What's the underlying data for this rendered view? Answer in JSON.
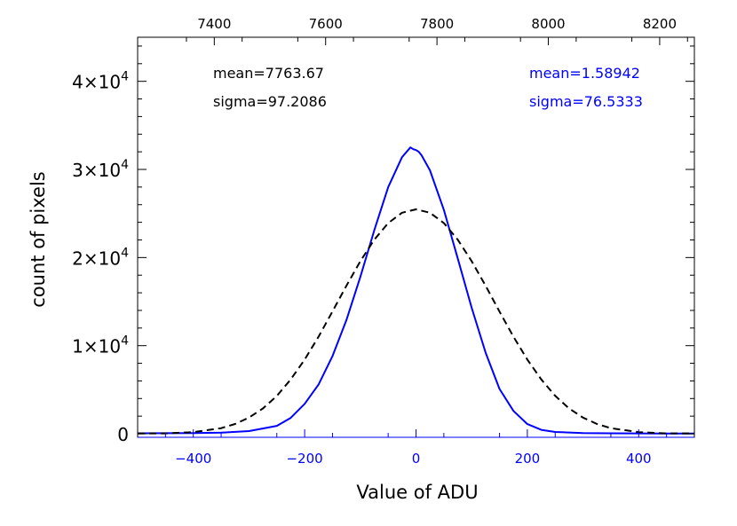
{
  "chart_data": {
    "type": "line",
    "xlabel": "Value of ADU",
    "ylabel": "count of pixels",
    "xlim": [
      -500,
      500
    ],
    "ylim": [
      -400,
      45000
    ],
    "top_axis": {
      "range": [
        7262.33,
        8262.33
      ],
      "ticks": [
        7400,
        7600,
        7800,
        8000,
        8200
      ],
      "tick_labels": [
        "7400",
        "7600",
        "7800",
        "8000",
        "8200"
      ]
    },
    "x_ticks": [
      -400,
      -200,
      0,
      200,
      400
    ],
    "x_tick_labels": [
      "−400",
      "−200",
      "0",
      "200",
      "400"
    ],
    "y_ticks": [
      {
        "value": 0,
        "mantissa": "0",
        "exponent": ""
      },
      {
        "value": 10000,
        "mantissa": "1×10",
        "exponent": "4"
      },
      {
        "value": 20000,
        "mantissa": "2×10",
        "exponent": "4"
      },
      {
        "value": 30000,
        "mantissa": "3×10",
        "exponent": "4"
      },
      {
        "value": 40000,
        "mantissa": "4×10",
        "exponent": "4"
      }
    ],
    "grid": false,
    "annotations": {
      "left": {
        "line1": "mean=7763.67",
        "line2": "sigma=97.2086",
        "color": "#000000"
      },
      "right": {
        "line1": "mean=1.58942",
        "line2": "sigma=76.5333",
        "color": "#0000ff"
      }
    },
    "series": [
      {
        "style": "solid",
        "color": "#0000ff",
        "x": [
          -500,
          -450,
          -400,
          -350,
          -300,
          -250,
          -225,
          -200,
          -175,
          -150,
          -125,
          -100,
          -75,
          -50,
          -25,
          -10,
          -5,
          0,
          5,
          10,
          25,
          50,
          75,
          100,
          125,
          150,
          175,
          200,
          225,
          250,
          300,
          350,
          400,
          450,
          500
        ],
        "y": [
          50,
          60,
          80,
          120,
          300,
          900,
          1800,
          3400,
          5600,
          8800,
          12900,
          17800,
          23100,
          28000,
          31400,
          32500,
          32300,
          32200,
          32000,
          31600,
          29900,
          25400,
          19900,
          14300,
          9200,
          5100,
          2600,
          1100,
          450,
          200,
          80,
          50,
          40,
          30,
          30
        ]
      },
      {
        "style": "dashed",
        "color": "#000000",
        "x": [
          -500,
          -450,
          -400,
          -350,
          -325,
          -300,
          -275,
          -250,
          -225,
          -200,
          -175,
          -150,
          -125,
          -100,
          -75,
          -50,
          -25,
          0,
          25,
          50,
          75,
          100,
          125,
          150,
          175,
          200,
          225,
          250,
          275,
          300,
          325,
          350,
          400,
          450,
          500
        ],
        "y": [
          35,
          45,
          180,
          640,
          1110,
          1830,
          2870,
          4300,
          6160,
          8420,
          11030,
          13870,
          16790,
          19580,
          22030,
          23910,
          25090,
          25470,
          25090,
          23910,
          22030,
          19580,
          16790,
          13870,
          11030,
          8420,
          6160,
          4300,
          2870,
          1830,
          1110,
          640,
          180,
          45,
          35
        ]
      }
    ]
  }
}
